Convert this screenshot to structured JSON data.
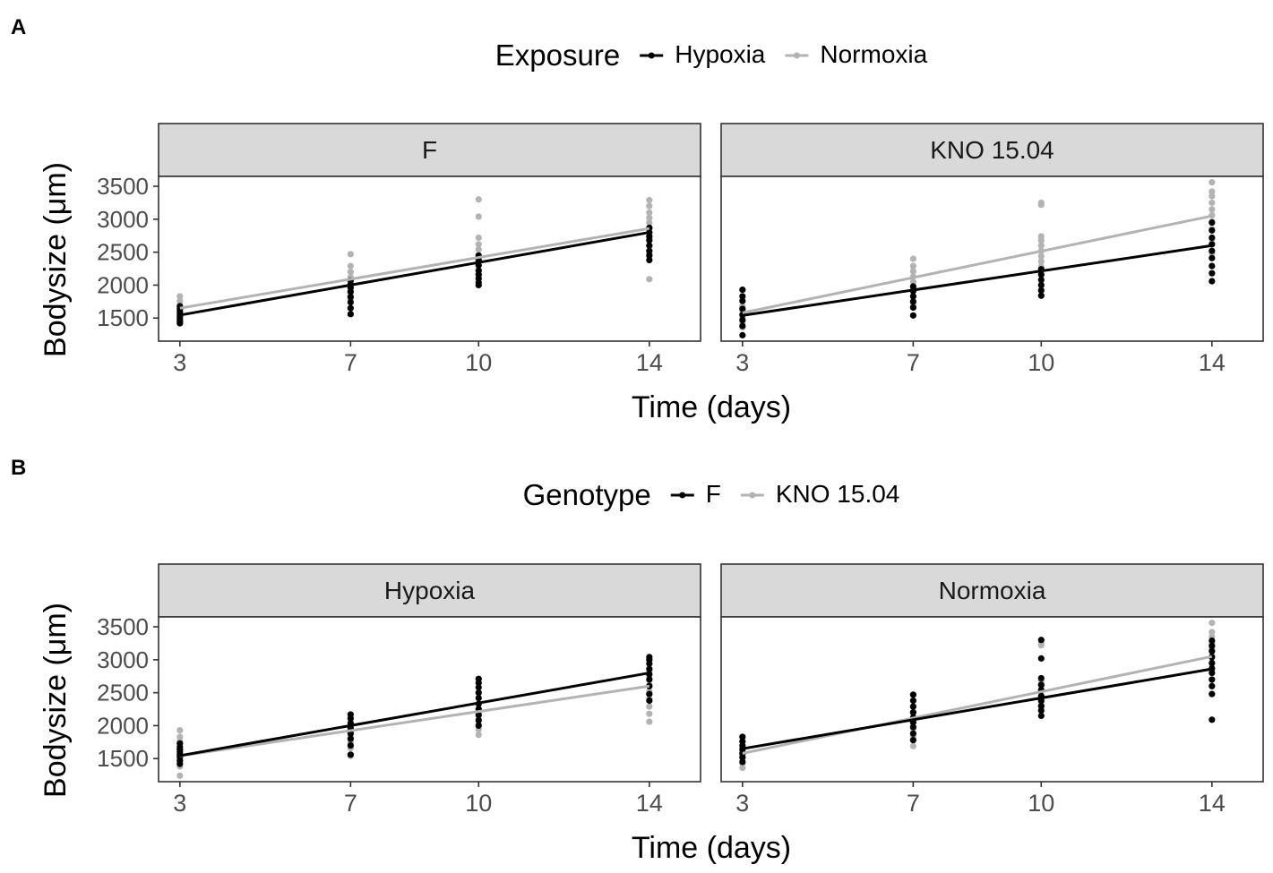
{
  "colors": {
    "series_dark": "#000000",
    "series_light": "#b3b3b3",
    "strip_fill": "#d9d9d9",
    "frame": "#333333",
    "tick_text": "#4d4d4d"
  },
  "axis": {
    "x_ticks": [
      3,
      7,
      10,
      14
    ],
    "y_ticks": [
      1500,
      2000,
      2500,
      3000,
      3500
    ],
    "xlim": [
      2.5,
      15.2
    ],
    "ylim": [
      1150,
      3650
    ]
  },
  "chart_data": [
    {
      "type": "scatter",
      "panel_label": "A",
      "title": "",
      "xlabel": "Time (days)",
      "ylabel": "Bodysize (μm)",
      "legend_title": "Exposure",
      "legend": [
        {
          "name": "Hypoxia",
          "color": "#000000"
        },
        {
          "name": "Normoxia",
          "color": "#b3b3b3"
        }
      ],
      "facets": [
        {
          "label": "F",
          "series": [
            {
              "name": "Hypoxia",
              "color": "#000000",
              "fit": {
                "x": [
                  3,
                  14
                ],
                "y": [
                  1545,
                  2800
                ]
              },
              "points": [
                {
                  "x": 3,
                  "values": [
                    1420,
                    1450,
                    1480,
                    1520,
                    1560,
                    1600,
                    1640,
                    1680
                  ]
                },
                {
                  "x": 7,
                  "values": [
                    1560,
                    1650,
                    1740,
                    1820,
                    1900,
                    1960,
                    2010,
                    2070
                  ]
                },
                {
                  "x": 10,
                  "values": [
                    2000,
                    2040,
                    2100,
                    2160,
                    2220,
                    2300,
                    2380,
                    2450
                  ]
                },
                {
                  "x": 14,
                  "values": [
                    2380,
                    2450,
                    2520,
                    2600,
                    2680,
                    2740,
                    2800,
                    2870
                  ]
                }
              ]
            },
            {
              "name": "Normoxia",
              "color": "#b3b3b3",
              "fit": {
                "x": [
                  3,
                  14
                ],
                "y": [
                  1650,
                  2860
                ]
              },
              "points": [
                {
                  "x": 3,
                  "values": [
                    1450,
                    1520,
                    1580,
                    1640,
                    1700,
                    1760,
                    1830
                  ]
                },
                {
                  "x": 7,
                  "values": [
                    1780,
                    1880,
                    1980,
                    2050,
                    2120,
                    2200,
                    2290,
                    2470
                  ]
                },
                {
                  "x": 10,
                  "values": [
                    2150,
                    2230,
                    2300,
                    2380,
                    2450,
                    2540,
                    2620,
                    2720,
                    3040,
                    3300
                  ]
                },
                {
                  "x": 14,
                  "values": [
                    2090,
                    2480,
                    2600,
                    2700,
                    2800,
                    2870,
                    2950,
                    3020,
                    3100,
                    3200,
                    3290
                  ]
                }
              ]
            }
          ]
        },
        {
          "label": "KNO 15.04",
          "series": [
            {
              "name": "Hypoxia",
              "color": "#000000",
              "fit": {
                "x": [
                  3,
                  14
                ],
                "y": [
                  1540,
                  2600
                ]
              },
              "points": [
                {
                  "x": 3,
                  "values": [
                    1240,
                    1380,
                    1470,
                    1550,
                    1640,
                    1760,
                    1830,
                    1930
                  ]
                },
                {
                  "x": 7,
                  "values": [
                    1540,
                    1660,
                    1750,
                    1830,
                    1910,
                    1980
                  ]
                },
                {
                  "x": 10,
                  "values": [
                    1840,
                    1920,
                    2000,
                    2080,
                    2160,
                    2240
                  ]
                },
                {
                  "x": 14,
                  "values": [
                    2060,
                    2180,
                    2290,
                    2410,
                    2520,
                    2620,
                    2720,
                    2830,
                    2950
                  ]
                }
              ]
            },
            {
              "name": "Normoxia",
              "color": "#b3b3b3",
              "fit": {
                "x": [
                  3,
                  14
                ],
                "y": [
                  1580,
                  3050
                ]
              },
              "points": [
                {
                  "x": 3,
                  "values": [
                    1360,
                    1430,
                    1500,
                    1560,
                    1620,
                    1680
                  ]
                },
                {
                  "x": 7,
                  "values": [
                    1690,
                    1830,
                    1950,
                    2050,
                    2130,
                    2210,
                    2290,
                    2400
                  ]
                },
                {
                  "x": 10,
                  "values": [
                    2280,
                    2360,
                    2440,
                    2520,
                    2600,
                    2680,
                    2740,
                    3220,
                    3250
                  ]
                },
                {
                  "x": 14,
                  "values": [
                    2480,
                    2700,
                    2850,
                    2960,
                    3060,
                    3150,
                    3250,
                    3350,
                    3420,
                    3560
                  ]
                }
              ]
            }
          ]
        }
      ]
    },
    {
      "type": "scatter",
      "panel_label": "B",
      "title": "",
      "xlabel": "Time (days)",
      "ylabel": "Bodysize (μm)",
      "legend_title": "Genotype",
      "legend": [
        {
          "name": "F",
          "color": "#000000"
        },
        {
          "name": "KNO 15.04",
          "color": "#b3b3b3"
        }
      ],
      "facets": [
        {
          "label": "Hypoxia",
          "series": [
            {
              "name": "F",
              "color": "#000000",
              "fit": {
                "x": [
                  3,
                  14
                ],
                "y": [
                  1545,
                  2800
                ]
              },
              "points": [
                {
                  "x": 3,
                  "values": [
                    1420,
                    1470,
                    1520,
                    1560,
                    1600,
                    1640,
                    1680,
                    1730
                  ]
                },
                {
                  "x": 7,
                  "values": [
                    1560,
                    1700,
                    1800,
                    1880,
                    1960,
                    2040,
                    2110,
                    2170
                  ]
                },
                {
                  "x": 10,
                  "values": [
                    2000,
                    2080,
                    2160,
                    2250,
                    2330,
                    2420,
                    2500,
                    2580,
                    2650,
                    2710
                  ]
                },
                {
                  "x": 14,
                  "values": [
                    2380,
                    2480,
                    2600,
                    2700,
                    2780,
                    2860,
                    2940,
                    3000,
                    3040
                  ]
                }
              ]
            },
            {
              "name": "KNO 15.04",
              "color": "#b3b3b3",
              "fit": {
                "x": [
                  3,
                  14
                ],
                "y": [
                  1540,
                  2600
                ]
              },
              "points": [
                {
                  "x": 3,
                  "values": [
                    1240,
                    1380,
                    1470,
                    1550,
                    1640,
                    1760,
                    1830,
                    1930
                  ]
                },
                {
                  "x": 7,
                  "values": [
                    1540,
                    1660,
                    1750,
                    1830,
                    1910,
                    1980
                  ]
                },
                {
                  "x": 10,
                  "values": [
                    1860,
                    1940,
                    2020,
                    2100,
                    2180,
                    2260
                  ]
                },
                {
                  "x": 14,
                  "values": [
                    2060,
                    2180,
                    2290,
                    2410,
                    2520,
                    2620,
                    2720,
                    2830
                  ]
                }
              ]
            }
          ]
        },
        {
          "label": "Normoxia",
          "series": [
            {
              "name": "F",
              "color": "#000000",
              "fit": {
                "x": [
                  3,
                  14
                ],
                "y": [
                  1650,
                  2860
                ]
              },
              "points": [
                {
                  "x": 3,
                  "values": [
                    1450,
                    1520,
                    1580,
                    1640,
                    1700,
                    1760,
                    1830
                  ]
                },
                {
                  "x": 7,
                  "values": [
                    1780,
                    1880,
                    1980,
                    2050,
                    2120,
                    2200,
                    2290,
                    2380,
                    2470
                  ]
                },
                {
                  "x": 10,
                  "values": [
                    2150,
                    2230,
                    2300,
                    2380,
                    2450,
                    2540,
                    2620,
                    2720,
                    3020,
                    3300
                  ]
                },
                {
                  "x": 14,
                  "values": [
                    2090,
                    2480,
                    2600,
                    2700,
                    2800,
                    2870,
                    2950,
                    3040,
                    3130,
                    3210,
                    3290
                  ]
                }
              ]
            },
            {
              "name": "KNO 15.04",
              "color": "#b3b3b3",
              "fit": {
                "x": [
                  3,
                  14
                ],
                "y": [
                  1580,
                  3050
                ]
              },
              "points": [
                {
                  "x": 3,
                  "values": [
                    1360,
                    1430,
                    1500,
                    1560,
                    1620,
                    1680
                  ]
                },
                {
                  "x": 7,
                  "values": [
                    1690,
                    1830,
                    1950,
                    2050,
                    2130,
                    2210,
                    2290
                  ]
                },
                {
                  "x": 10,
                  "values": [
                    2280,
                    2360,
                    2440,
                    2520,
                    2600,
                    2680,
                    3220,
                    3250
                  ]
                },
                {
                  "x": 14,
                  "values": [
                    2480,
                    2700,
                    2850,
                    2960,
                    3060,
                    3150,
                    3250,
                    3350,
                    3420,
                    3560
                  ]
                }
              ]
            }
          ]
        }
      ]
    }
  ]
}
